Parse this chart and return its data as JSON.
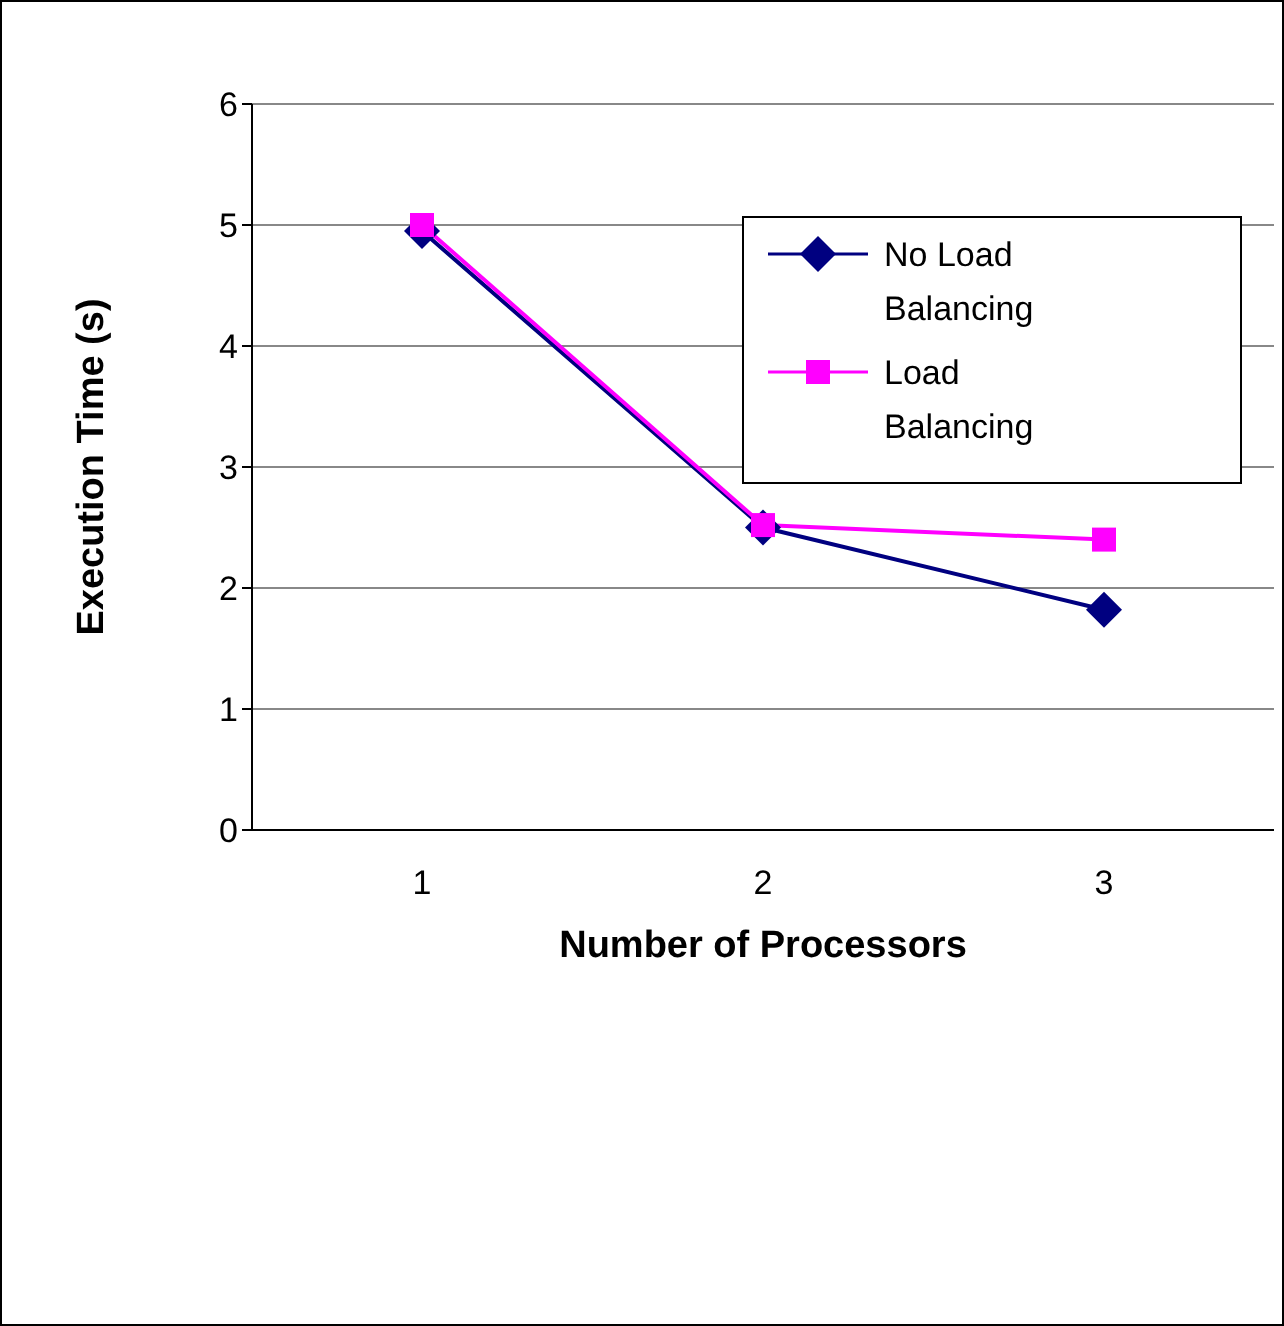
{
  "chart_data": {
    "type": "line",
    "xlabel": "Number of Processors",
    "ylabel": "Execution Time (s)",
    "categories": [
      "1",
      "2",
      "3"
    ],
    "series": [
      {
        "name": "No Load Balancing",
        "color": "#000080",
        "values": [
          4.95,
          2.5,
          1.82
        ],
        "marker": "diamond"
      },
      {
        "name": "Load Balancing",
        "color": "#ff00ff",
        "values": [
          5.0,
          2.52,
          2.4
        ],
        "marker": "square"
      }
    ],
    "ylim": [
      0,
      6
    ],
    "yticks": [
      0,
      1,
      2,
      3,
      4,
      5,
      6
    ],
    "grid": "y",
    "legend": "top right"
  }
}
